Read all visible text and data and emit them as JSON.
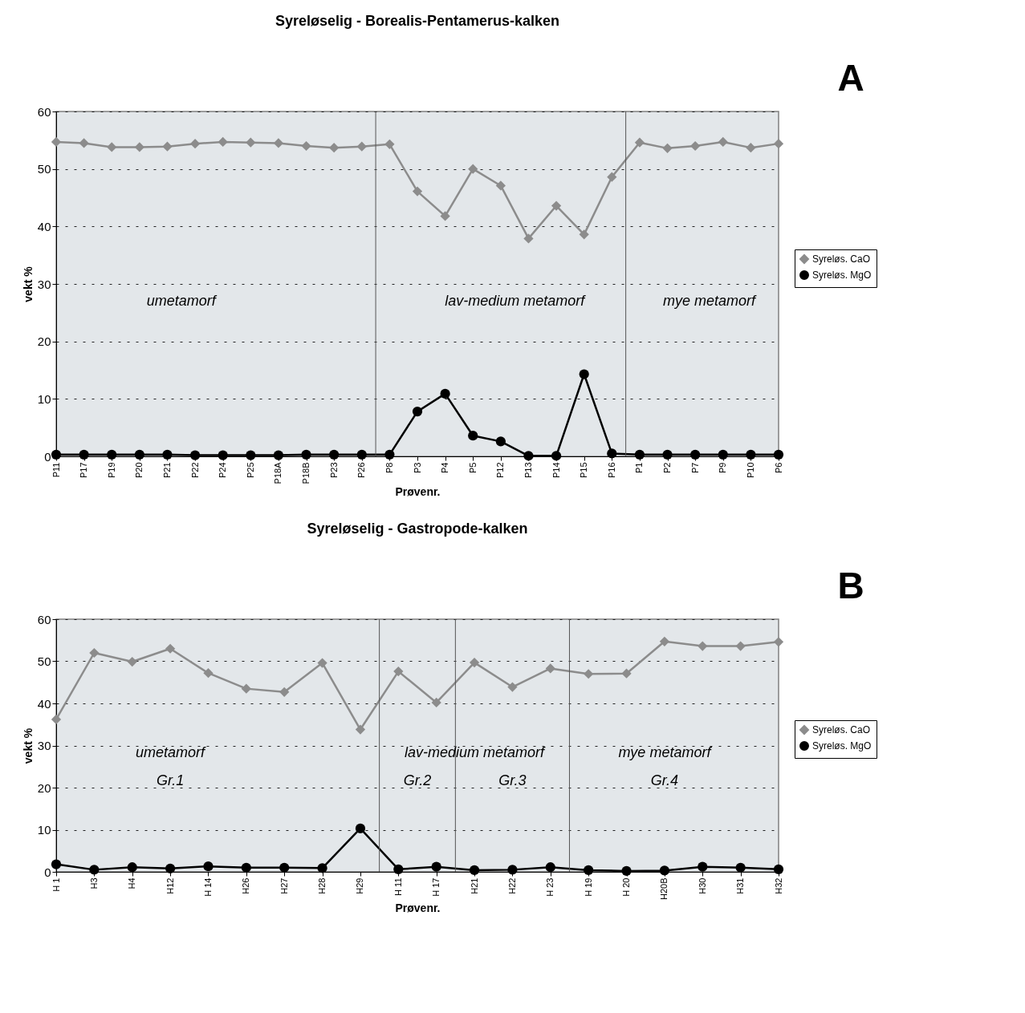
{
  "chart_data": [
    {
      "type": "line",
      "title": "Syreløselig - Borealis-Pentamerus-kalken",
      "xlabel": "Prøvenr.",
      "ylabel": "vekt %",
      "categories": [
        "P11",
        "P17",
        "P19",
        "P20",
        "P21",
        "P22",
        "P24",
        "P25",
        "P18A",
        "P18B",
        "P23",
        "P26",
        "P8",
        "P3",
        "P4",
        "P5",
        "P12",
        "P13",
        "P14",
        "P15",
        "P16",
        "P1",
        "P2",
        "P7",
        "P9",
        "P10",
        "P6"
      ],
      "series": [
        {
          "name": "Syreløs. CaO",
          "color": "#8c8c8c",
          "marker": "diamond",
          "values": [
            54.7,
            54.5,
            53.8,
            53.8,
            53.9,
            54.4,
            54.7,
            54.6,
            54.5,
            54.0,
            53.7,
            53.9,
            54.3,
            46.1,
            41.8,
            50.0,
            47.1,
            37.9,
            43.6,
            38.6,
            48.6,
            54.6,
            53.6,
            54.0,
            54.7,
            53.7,
            54.4
          ]
        },
        {
          "name": "Syreløs. MgO",
          "color": "#000000",
          "marker": "circle",
          "values": [
            0.3,
            0.3,
            0.3,
            0.3,
            0.3,
            0.2,
            0.2,
            0.2,
            0.2,
            0.3,
            0.3,
            0.3,
            0.3,
            7.8,
            10.9,
            3.6,
            2.6,
            0.1,
            0.1,
            14.3,
            0.5,
            0.3,
            0.3,
            0.3,
            0.3,
            0.3,
            0.3
          ]
        }
      ],
      "annotations": [
        "A",
        "umetamorf",
        "lav-medium metamorf",
        "mye metamorf"
      ],
      "ylim": [
        0,
        60
      ],
      "yticks": [
        0,
        10,
        20,
        30,
        40,
        50,
        60
      ],
      "grid": "y",
      "legend": "right"
    },
    {
      "type": "line",
      "title": "Syreløselig - Gastropode-kalken",
      "xlabel": "Prøvenr.",
      "ylabel": "vekt %",
      "categories": [
        "H 1",
        "H3",
        "H4",
        "H12",
        "H 14",
        "H26",
        "H27",
        "H28",
        "H29",
        "H 11",
        "H 17",
        "H21",
        "H22",
        "H 23",
        "H 19",
        "H 20",
        "H20B",
        "H30",
        "H31",
        "H32"
      ],
      "series": [
        {
          "name": "Syreløs. CaO",
          "color": "#8c8c8c",
          "marker": "diamond",
          "values": [
            36.2,
            52.0,
            49.9,
            53.0,
            47.2,
            43.5,
            42.7,
            49.6,
            33.8,
            47.6,
            40.2,
            49.7,
            43.9,
            48.3,
            47.0,
            47.1,
            54.7,
            53.6,
            53.6,
            54.6
          ]
        },
        {
          "name": "Syreløs. MgO",
          "color": "#000000",
          "marker": "circle",
          "values": [
            1.8,
            0.5,
            1.1,
            0.8,
            1.3,
            1.0,
            1.0,
            0.9,
            10.3,
            0.6,
            1.2,
            0.4,
            0.5,
            1.1,
            0.4,
            0.2,
            0.3,
            1.2,
            1.0,
            0.6
          ]
        }
      ],
      "annotations": [
        "B",
        "umetamorf",
        "Gr.1",
        "lav-medium metamorf",
        "Gr.2",
        "Gr.3",
        "mye metamorf",
        "Gr.4"
      ],
      "ylim": [
        0,
        60
      ],
      "yticks": [
        0,
        10,
        20,
        30,
        40,
        50,
        60
      ],
      "grid": "y",
      "legend": "right"
    }
  ]
}
